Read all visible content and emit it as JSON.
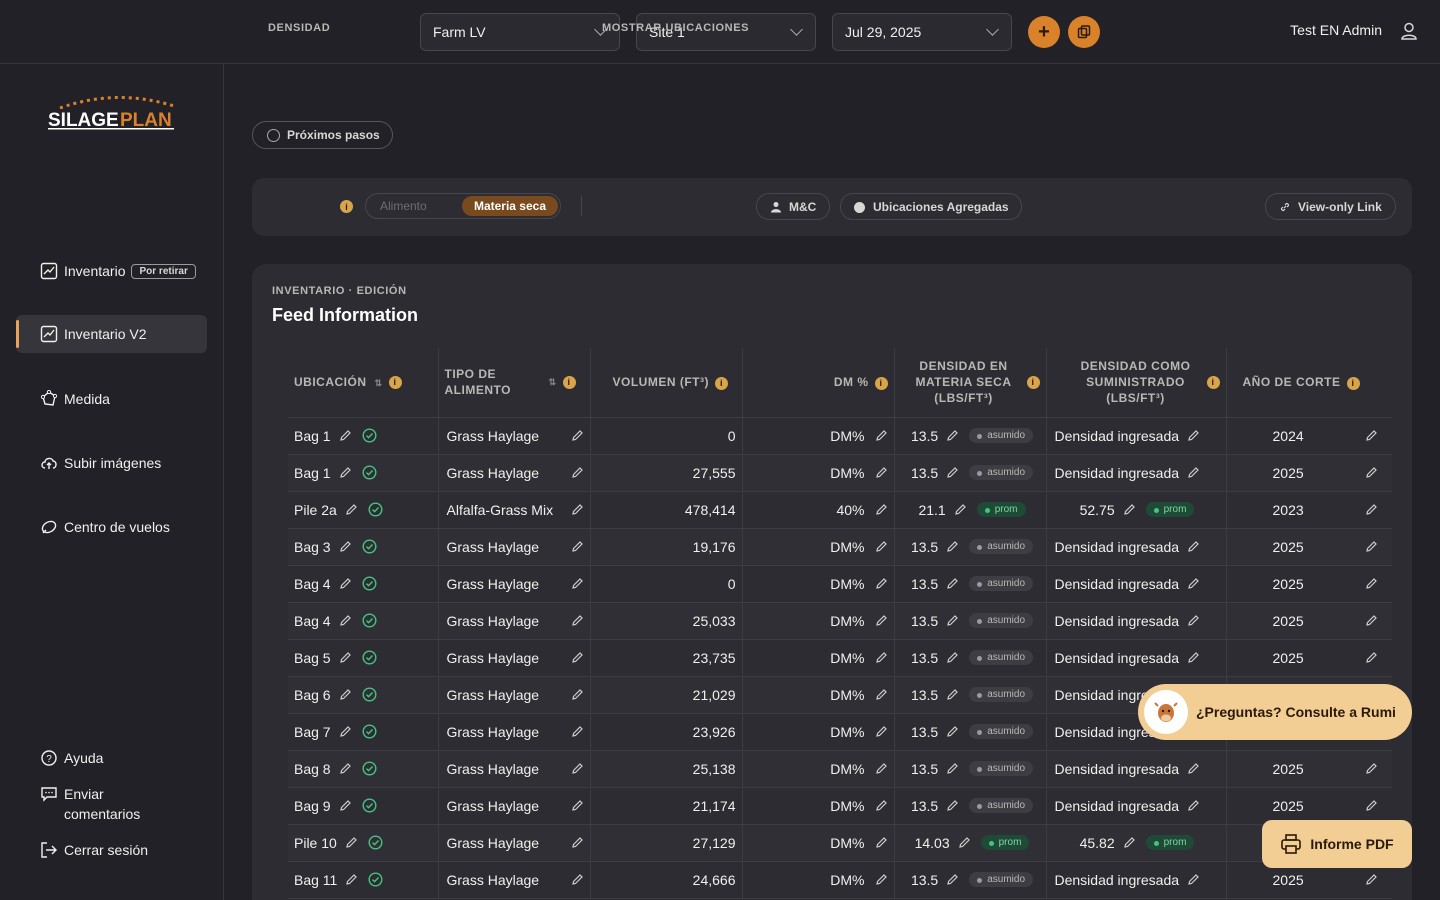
{
  "topbar": {
    "farm": "Farm LV",
    "site": "Site 1",
    "date": "Jul 29, 2025",
    "user": "Test EN Admin"
  },
  "sidebar": {
    "logo_text": "SILAGEPLAN",
    "items": [
      {
        "label": "Inventario",
        "tag": "Por retirar"
      },
      {
        "label": "Inventario V2"
      },
      {
        "label": "Medida"
      },
      {
        "label": "Subir imágenes"
      },
      {
        "label": "Centro de vuelos"
      }
    ],
    "bottom": {
      "help": "Ayuda",
      "feedback": "Enviar comentarios",
      "logout": "Cerrar sesión"
    }
  },
  "next_steps": "Próximos pasos",
  "filters": {
    "density_label": "DENSIDAD",
    "density_off": "Alimento",
    "density_on": "Materia seca",
    "locations_label": "MOSTRAR UBICACIONES",
    "chip_mc": "M&C",
    "chip_agg": "Ubicaciones Agregadas",
    "view_only": "View-only Link"
  },
  "card": {
    "eyebrow": "INVENTARIO · EDICIÓN",
    "title": "Feed Information"
  },
  "table": {
    "headers": {
      "location": "UBICACIÓN",
      "feed_type": "TIPO DE ALIMENTO",
      "volume": "VOLUMEN (FT³)",
      "dm": "DM %",
      "dm_density": "DENSIDAD EN MATERIA SECA (LBS/FT³)",
      "as_fed": "DENSIDAD COMO SUMINISTRADO (LBS/FT³)",
      "year": "AÑO DE CORTE"
    },
    "rows": [
      {
        "loc": "Bag 1",
        "feed": "Grass Haylage",
        "vol": "0",
        "dm": "DM%",
        "dmd": "13.5",
        "dmd_badge": "asumido",
        "af": "Densidad ingresada",
        "af_badge": "",
        "year": "2024"
      },
      {
        "loc": "Bag 1",
        "feed": "Grass Haylage",
        "vol": "27,555",
        "dm": "DM%",
        "dmd": "13.5",
        "dmd_badge": "asumido",
        "af": "Densidad ingresada",
        "af_badge": "",
        "year": "2025"
      },
      {
        "loc": "Pile 2a",
        "feed": "Alfalfa-Grass Mix",
        "vol": "478,414",
        "dm": "40%",
        "dmd": "21.1",
        "dmd_badge": "prom",
        "af": "52.75",
        "af_badge": "prom",
        "year": "2023"
      },
      {
        "loc": "Bag 3",
        "feed": "Grass Haylage",
        "vol": "19,176",
        "dm": "DM%",
        "dmd": "13.5",
        "dmd_badge": "asumido",
        "af": "Densidad ingresada",
        "af_badge": "",
        "year": "2025"
      },
      {
        "loc": "Bag 4",
        "feed": "Grass Haylage",
        "vol": "0",
        "dm": "DM%",
        "dmd": "13.5",
        "dmd_badge": "asumido",
        "af": "Densidad ingresada",
        "af_badge": "",
        "year": "2025"
      },
      {
        "loc": "Bag 4",
        "feed": "Grass Haylage",
        "vol": "25,033",
        "dm": "DM%",
        "dmd": "13.5",
        "dmd_badge": "asumido",
        "af": "Densidad ingresada",
        "af_badge": "",
        "year": "2025"
      },
      {
        "loc": "Bag 5",
        "feed": "Grass Haylage",
        "vol": "23,735",
        "dm": "DM%",
        "dmd": "13.5",
        "dmd_badge": "asumido",
        "af": "Densidad ingresada",
        "af_badge": "",
        "year": "2025"
      },
      {
        "loc": "Bag 6",
        "feed": "Grass Haylage",
        "vol": "21,029",
        "dm": "DM%",
        "dmd": "13.5",
        "dmd_badge": "asumido",
        "af": "Densidad ingresada",
        "af_badge": "",
        "year": "2025"
      },
      {
        "loc": "Bag 7",
        "feed": "Grass Haylage",
        "vol": "23,926",
        "dm": "DM%",
        "dmd": "13.5",
        "dmd_badge": "asumido",
        "af": "Densidad ingresada",
        "af_badge": "",
        "year": "2025"
      },
      {
        "loc": "Bag 8",
        "feed": "Grass Haylage",
        "vol": "25,138",
        "dm": "DM%",
        "dmd": "13.5",
        "dmd_badge": "asumido",
        "af": "Densidad ingresada",
        "af_badge": "",
        "year": "2025"
      },
      {
        "loc": "Bag 9",
        "feed": "Grass Haylage",
        "vol": "21,174",
        "dm": "DM%",
        "dmd": "13.5",
        "dmd_badge": "asumido",
        "af": "Densidad ingresada",
        "af_badge": "",
        "year": "2025"
      },
      {
        "loc": "Pile 10",
        "feed": "Grass Haylage",
        "vol": "27,129",
        "dm": "DM%",
        "dmd": "14.03",
        "dmd_badge": "prom",
        "af": "45.82",
        "af_badge": "prom",
        "year": "2025"
      },
      {
        "loc": "Bag 11",
        "feed": "Grass Haylage",
        "vol": "24,666",
        "dm": "DM%",
        "dmd": "13.5",
        "dmd_badge": "asumido",
        "af": "Densidad ingresada",
        "af_badge": "",
        "year": "2025"
      }
    ]
  },
  "rumi": "¿Preguntas? Consulte a Rumi",
  "pdf": "Informe PDF",
  "colors": {
    "accent": "#d9822b",
    "bg": "#212127",
    "card": "#2c2c32",
    "cta": "#f2cd94"
  }
}
